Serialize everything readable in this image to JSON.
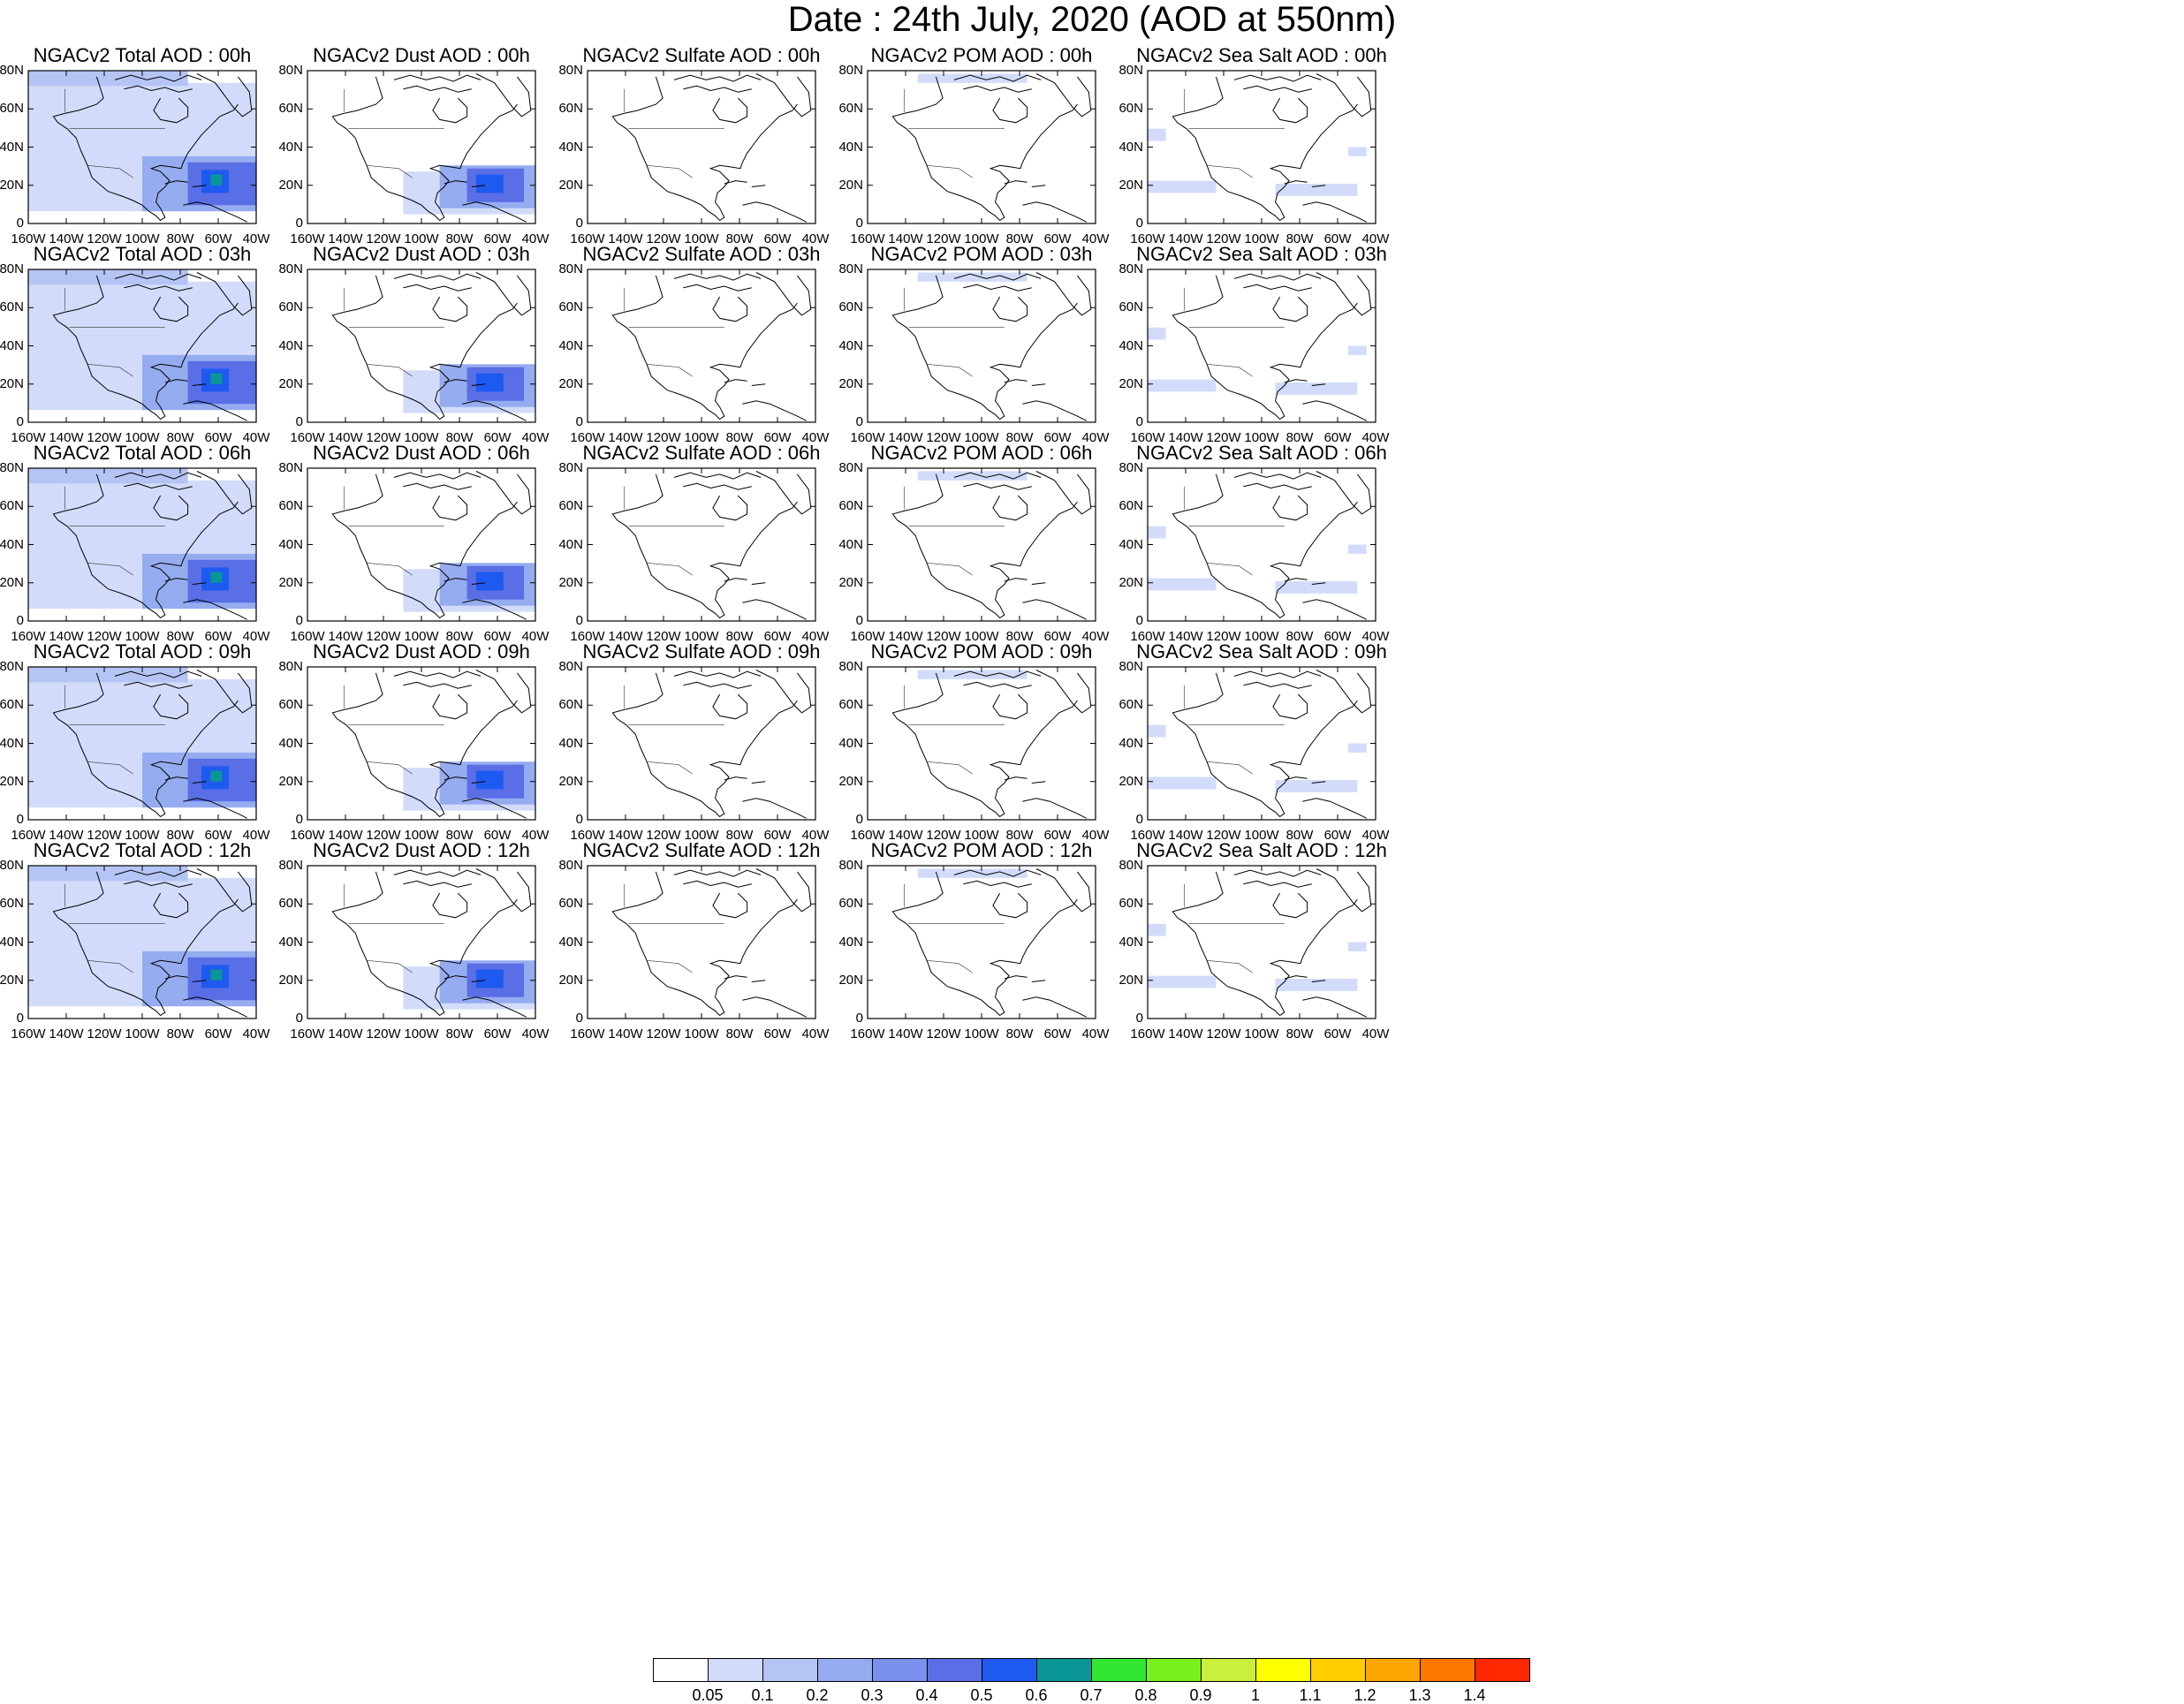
{
  "title": "Date : 24th July, 2020 (AOD at 550nm)",
  "lat_labels": [
    "80N",
    "60N",
    "40N",
    "20N",
    "0"
  ],
  "lon_labels": [
    "160W",
    "140W",
    "120W",
    "100W",
    "80W",
    "60W",
    "40W"
  ],
  "panel_titles": [
    [
      "NGACv2 Total AOD : 00h",
      "NGACv2 Dust AOD : 00h",
      "NGACv2 Sulfate AOD : 00h",
      "NGACv2 POM AOD : 00h",
      "NGACv2 Sea Salt AOD : 00h"
    ],
    [
      "NGACv2 Total AOD : 03h",
      "NGACv2 Dust AOD : 03h",
      "NGACv2 Sulfate AOD : 03h",
      "NGACv2 POM AOD : 03h",
      "NGACv2 Sea Salt AOD : 03h"
    ],
    [
      "NGACv2 Total AOD : 06h",
      "NGACv2 Dust AOD : 06h",
      "NGACv2 Sulfate AOD : 06h",
      "NGACv2 POM AOD : 06h",
      "NGACv2 Sea Salt AOD : 06h"
    ],
    [
      "NGACv2 Total AOD : 09h",
      "NGACv2 Dust AOD : 09h",
      "NGACv2 Sulfate AOD : 09h",
      "NGACv2 POM AOD : 09h",
      "NGACv2 Sea Salt  AOD : 09h"
    ],
    [
      "NGACv2 Total AOD  : 12h",
      "NGACv2 Dust AOD : 12h",
      "NGACv2 Sulfate AOD : 12h",
      "NGACv2 POM  AOD : 12h",
      "NGACv2 Sea Salt  AOD : 12h"
    ]
  ],
  "colorbar": {
    "colors": [
      "#ffffff",
      "#d2dcfa",
      "#b4c4f4",
      "#96acf0",
      "#7a90ec",
      "#5a6ee6",
      "#1e5af0",
      "#0a9696",
      "#32e632",
      "#78f01e",
      "#c8f03c",
      "#ffff00",
      "#ffcd00",
      "#ffa500",
      "#ff7800",
      "#ff2800"
    ],
    "labels": [
      "0.05",
      "0.1",
      "0.2",
      "0.3",
      "0.4",
      "0.5",
      "0.6",
      "0.7",
      "0.8",
      "0.9",
      "1",
      "1.1",
      "1.2",
      "1.3",
      "1.4"
    ]
  }
}
